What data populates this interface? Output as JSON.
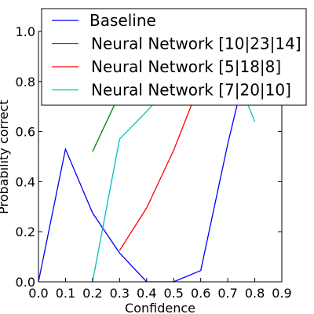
{
  "chart_data": {
    "type": "line",
    "xlabel": "Confidence",
    "ylabel": "Probability correct",
    "xlim": [
      0.0,
      0.9
    ],
    "ylim": [
      0.0,
      1.0
    ],
    "x_ticks": [
      "0.0",
      "0.1",
      "0.2",
      "0.3",
      "0.4",
      "0.5",
      "0.6",
      "0.7",
      "0.8",
      "0.9"
    ],
    "y_ticks": [
      "0.0",
      "0.2",
      "0.4",
      "0.6",
      "0.8",
      "1.0"
    ],
    "grid": false,
    "legend_position": "top-right",
    "series": [
      {
        "name": "Baseline",
        "color": "#0000ff",
        "x": [
          0.0,
          0.1,
          0.2,
          0.3,
          0.4,
          0.5,
          0.6,
          0.7,
          0.8
        ],
        "y": [
          0.0,
          0.53,
          0.275,
          0.115,
          0.0,
          0.0,
          0.045,
          0.55,
          1.0
        ]
      },
      {
        "name": "Neural Network [10|23|14]",
        "color": "#008000",
        "x": [
          0.2,
          0.3,
          0.4
        ],
        "y": [
          0.52,
          0.75,
          1.0
        ]
      },
      {
        "name": "Neural Network [5|18|8]",
        "color": "#ff0000",
        "x": [
          0.3,
          0.4,
          0.5,
          0.6,
          0.7
        ],
        "y": [
          0.125,
          0.295,
          0.525,
          0.8,
          1.0
        ]
      },
      {
        "name": "Neural Network [7|20|10]",
        "color": "#00bfbf",
        "x": [
          0.2,
          0.3,
          0.4,
          0.5,
          0.6,
          0.7,
          0.8
        ],
        "y": [
          0.0,
          0.57,
          0.68,
          0.8,
          0.85,
          0.9,
          0.64
        ]
      }
    ]
  }
}
